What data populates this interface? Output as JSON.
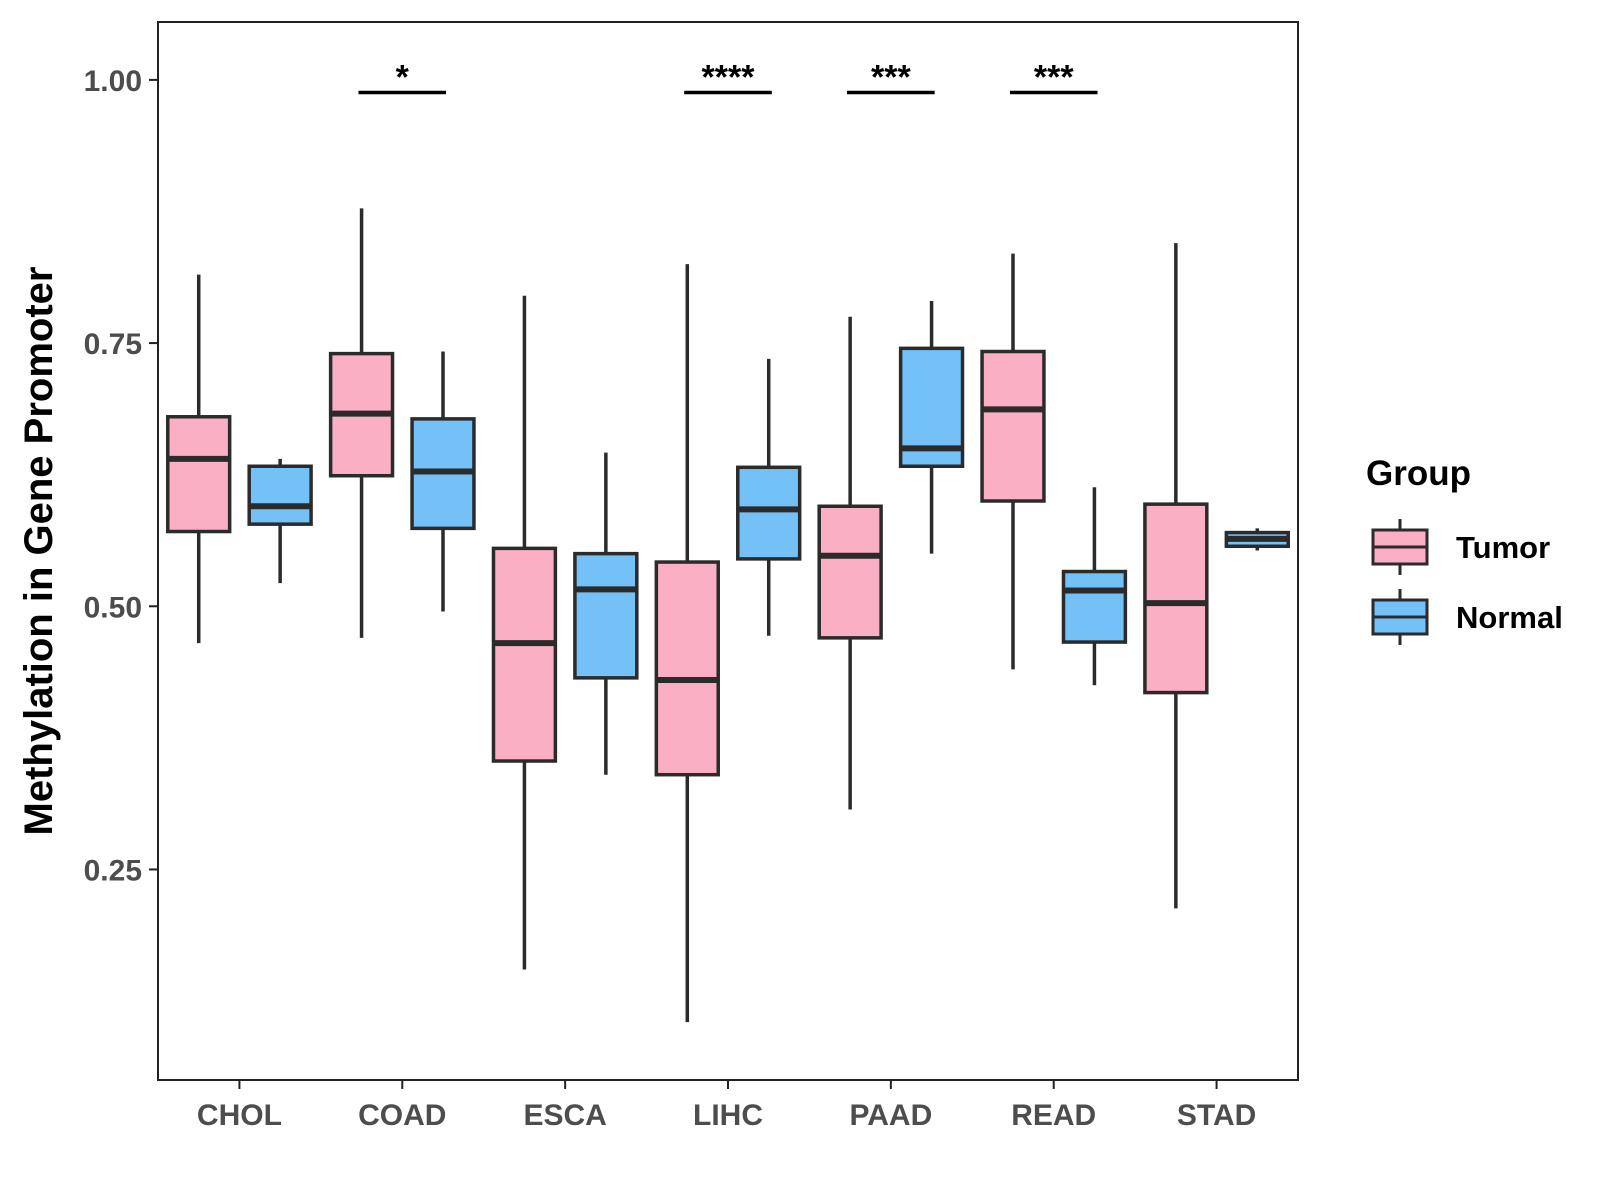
{
  "chart_data": {
    "type": "boxplot",
    "title": "",
    "xlabel": "",
    "ylabel": "Methylation in Gene Promoter",
    "ylim": [
      0.05,
      1.055
    ],
    "yticks": [
      0.25,
      0.5,
      0.75,
      1.0
    ],
    "ytick_labels": [
      "0.25",
      "0.50",
      "0.75",
      "1.00"
    ],
    "grid": false,
    "categories": [
      "CHOL",
      "COAD",
      "ESCA",
      "LIHC",
      "PAAD",
      "READ",
      "STAD"
    ],
    "series": [
      {
        "name": "Tumor",
        "color": "#FBAFC4",
        "boxes": [
          {
            "whisker_low": 0.465,
            "q1": 0.571,
            "median": 0.64,
            "q3": 0.68,
            "whisker_high": 0.815
          },
          {
            "whisker_low": 0.47,
            "q1": 0.624,
            "median": 0.683,
            "q3": 0.74,
            "whisker_high": 0.878
          },
          {
            "whisker_low": 0.155,
            "q1": 0.353,
            "median": 0.465,
            "q3": 0.555,
            "whisker_high": 0.795
          },
          {
            "whisker_low": 0.105,
            "q1": 0.34,
            "median": 0.43,
            "q3": 0.542,
            "whisker_high": 0.825
          },
          {
            "whisker_low": 0.307,
            "q1": 0.47,
            "median": 0.548,
            "q3": 0.595,
            "whisker_high": 0.775
          },
          {
            "whisker_low": 0.44,
            "q1": 0.6,
            "median": 0.687,
            "q3": 0.742,
            "whisker_high": 0.835
          },
          {
            "whisker_low": 0.213,
            "q1": 0.418,
            "median": 0.503,
            "q3": 0.597,
            "whisker_high": 0.845
          }
        ]
      },
      {
        "name": "Normal",
        "color": "#74C1F7",
        "boxes": [
          {
            "whisker_low": 0.522,
            "q1": 0.578,
            "median": 0.595,
            "q3": 0.633,
            "whisker_high": 0.64
          },
          {
            "whisker_low": 0.495,
            "q1": 0.574,
            "median": 0.628,
            "q3": 0.678,
            "whisker_high": 0.742
          },
          {
            "whisker_low": 0.34,
            "q1": 0.432,
            "median": 0.516,
            "q3": 0.55,
            "whisker_high": 0.646
          },
          {
            "whisker_low": 0.472,
            "q1": 0.545,
            "median": 0.592,
            "q3": 0.632,
            "whisker_high": 0.735
          },
          {
            "whisker_low": 0.55,
            "q1": 0.633,
            "median": 0.65,
            "q3": 0.745,
            "whisker_high": 0.79
          },
          {
            "whisker_low": 0.425,
            "q1": 0.466,
            "median": 0.515,
            "q3": 0.533,
            "whisker_high": 0.613
          },
          {
            "whisker_low": 0.553,
            "q1": 0.557,
            "median": 0.564,
            "q3": 0.57,
            "whisker_high": 0.574
          }
        ]
      }
    ],
    "significance": [
      {
        "category": "COAD",
        "label": "*",
        "y": 0.988
      },
      {
        "category": "LIHC",
        "label": "****",
        "y": 0.988
      },
      {
        "category": "PAAD",
        "label": "***",
        "y": 0.988
      },
      {
        "category": "READ",
        "label": "***",
        "y": 0.988
      }
    ],
    "legend": {
      "title": "Group",
      "position": "right",
      "entries": [
        {
          "label": "Tumor",
          "color": "#FBAFC4"
        },
        {
          "label": "Normal",
          "color": "#74C1F7"
        }
      ]
    },
    "stroke_color": "#2b2b2b"
  }
}
